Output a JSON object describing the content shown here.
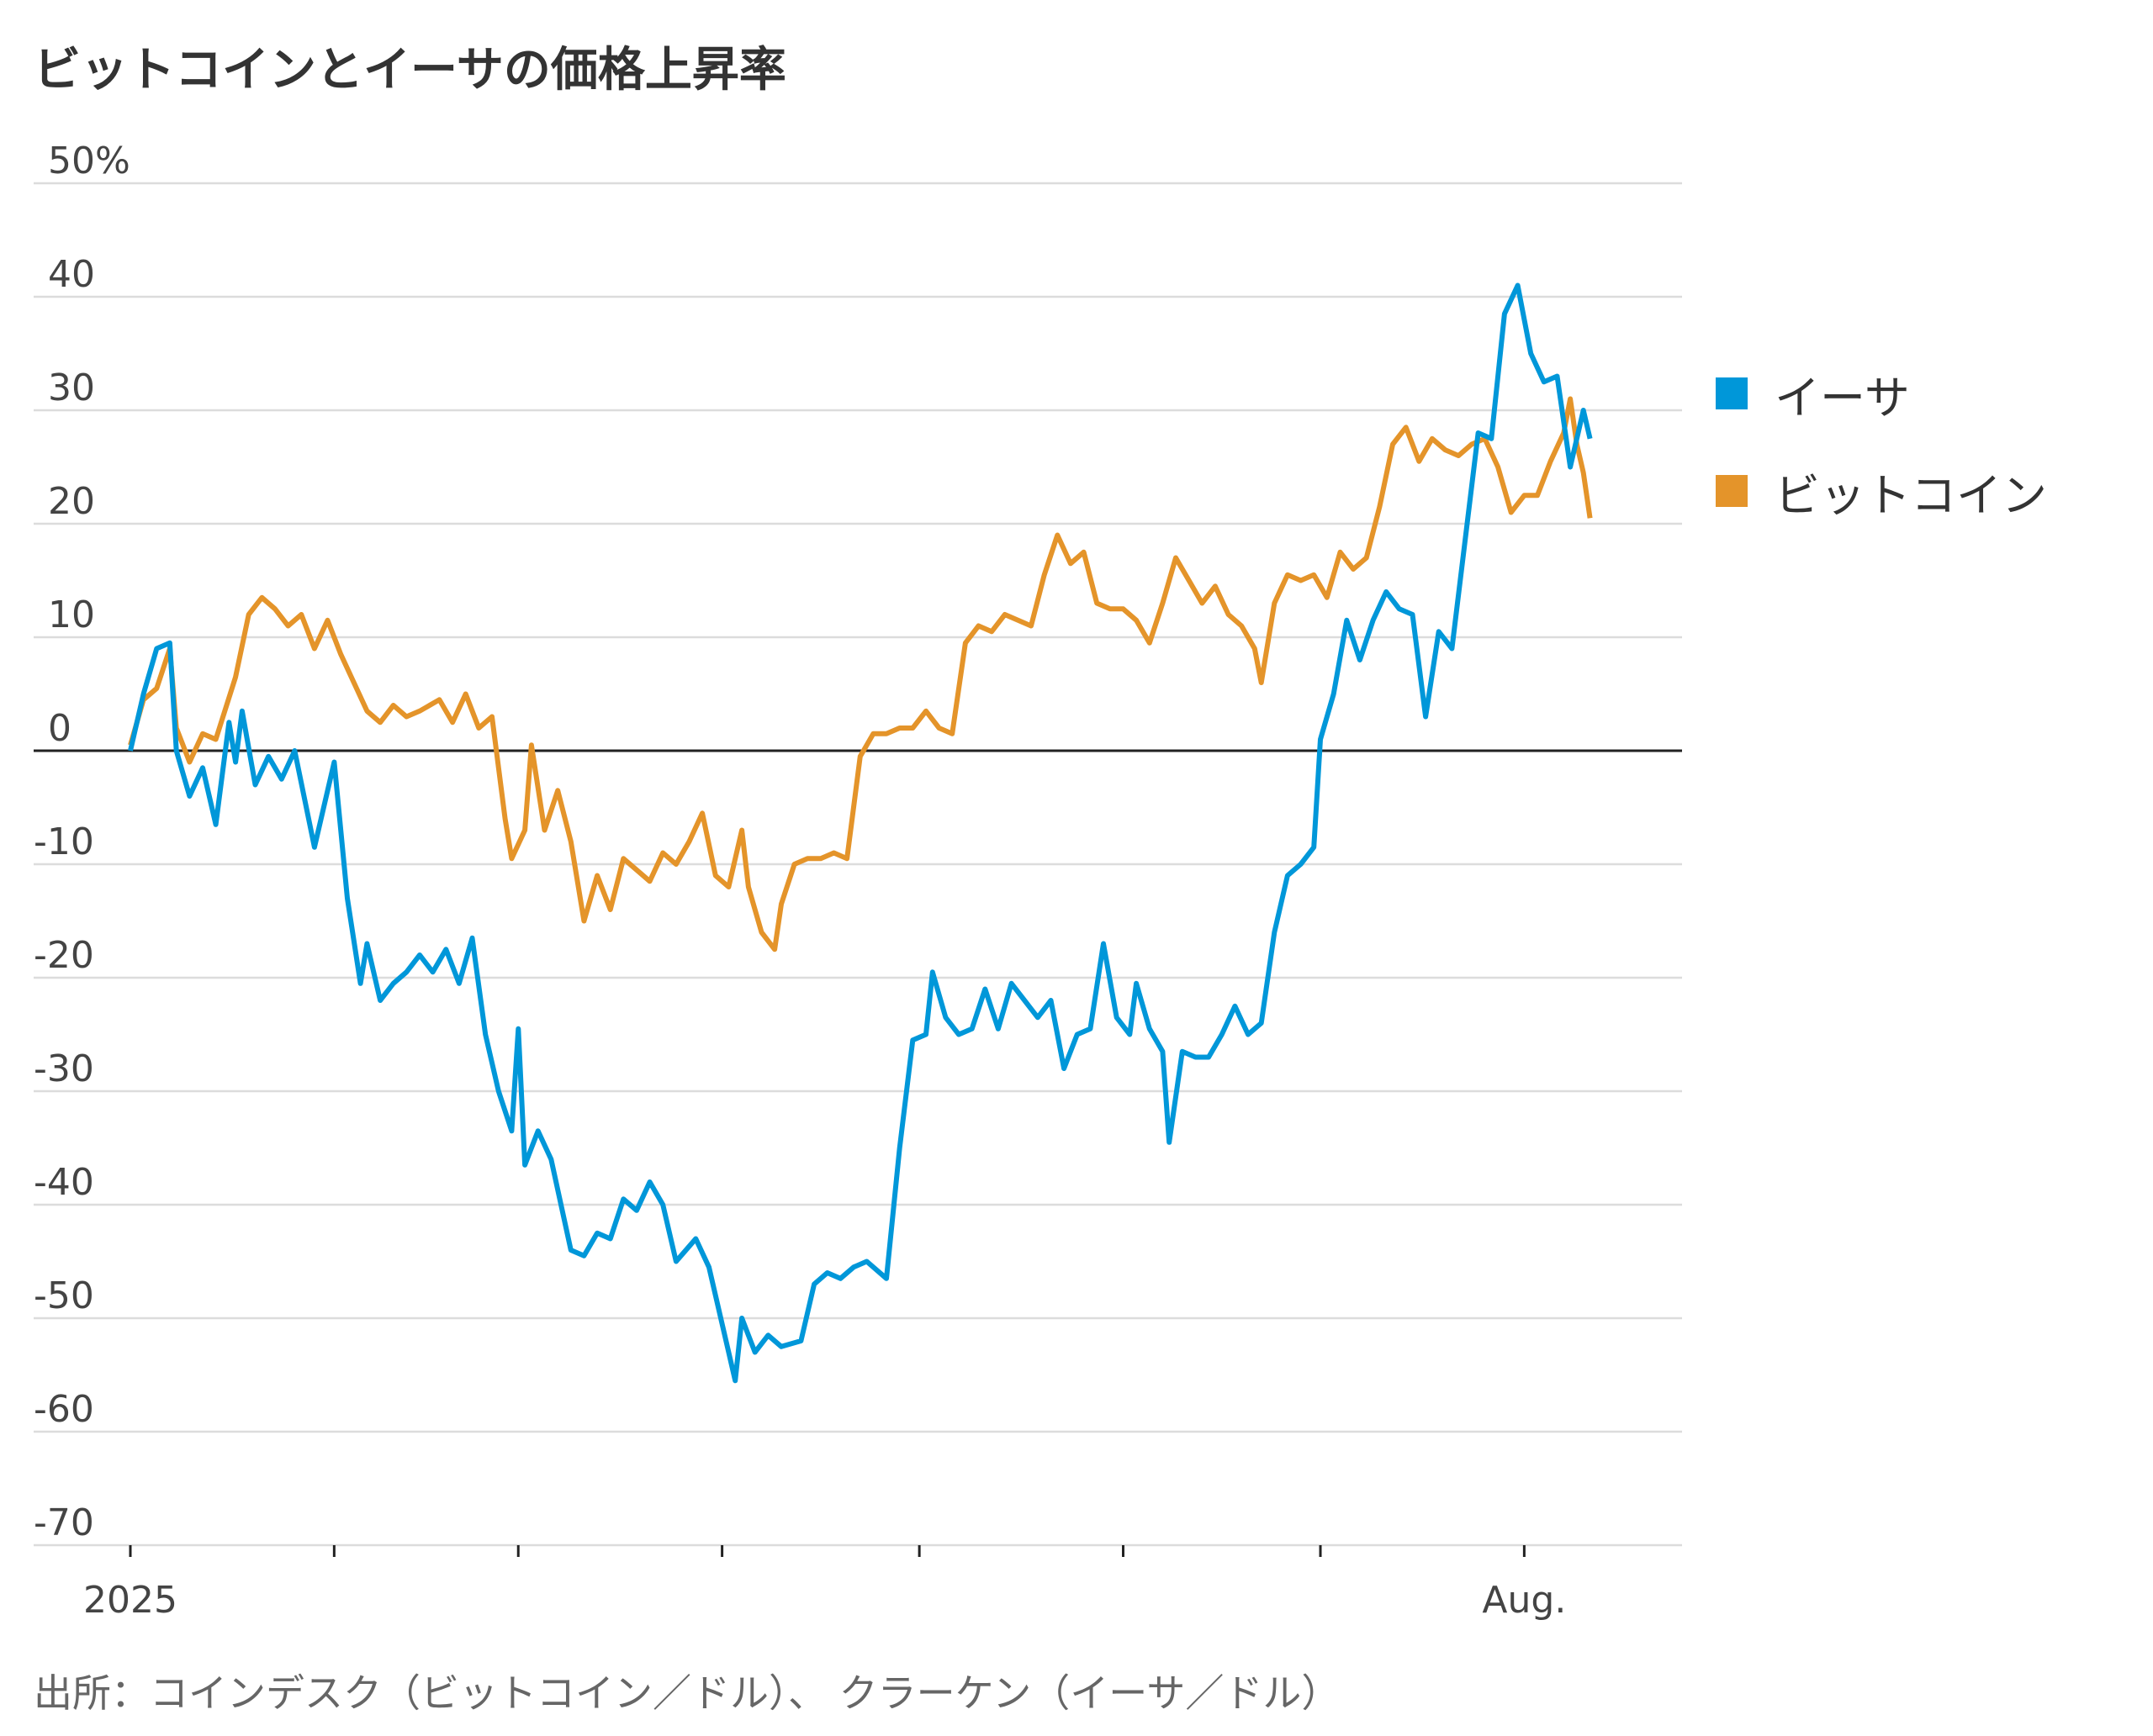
{
  "title": "ビットコインとイーサの価格上昇率",
  "source": "出所：コインデスク（ビットコイン／ドル）、 クラーケン（イーサ／ドル）",
  "legend": [
    {
      "name": "イーサ",
      "color": "#0097d9"
    },
    {
      "name": "ビットコイン",
      "color": "#e4942a"
    }
  ],
  "chart_data": {
    "type": "line",
    "title": "ビットコインとイーサの価格上昇率",
    "y_unit": "%",
    "ylim": [
      -70,
      50
    ],
    "yticks": [
      50,
      40,
      30,
      20,
      10,
      0,
      -10,
      -20,
      -30,
      -40,
      -50,
      -60,
      -70
    ],
    "ytick_labels": [
      "50%",
      "40",
      "30",
      "20",
      "10",
      "0",
      "-10",
      "-20",
      "-30",
      "-40",
      "-50",
      "-60",
      "-70"
    ],
    "xlim": [
      "2025-01-01",
      "2025-08-25"
    ],
    "xtick_labels": [
      {
        "date": "2025-01-01",
        "label": "2025"
      },
      {
        "date": "2025-08-01",
        "label": "Aug."
      }
    ],
    "xticks_unlabeled": [
      "2025-02-01",
      "2025-03-01",
      "2025-04-01",
      "2025-05-01",
      "2025-06-01",
      "2025-07-01"
    ],
    "zero_line": true,
    "grid": "horizontal",
    "legend_position": "right",
    "series": [
      {
        "name": "イーサ",
        "color": "#0097d9",
        "points": [
          [
            "2025-01-01",
            0
          ],
          [
            "2025-01-03",
            5
          ],
          [
            "2025-01-05",
            9
          ],
          [
            "2025-01-07",
            9.5
          ],
          [
            "2025-01-08",
            0
          ],
          [
            "2025-01-10",
            -4
          ],
          [
            "2025-01-12",
            -1.5
          ],
          [
            "2025-01-14",
            -6.5
          ],
          [
            "2025-01-16",
            2.5
          ],
          [
            "2025-01-17",
            -1
          ],
          [
            "2025-01-18",
            3.5
          ],
          [
            "2025-01-20",
            -3
          ],
          [
            "2025-01-22",
            -0.5
          ],
          [
            "2025-01-24",
            -2.5
          ],
          [
            "2025-01-26",
            0
          ],
          [
            "2025-01-29",
            -8.5
          ],
          [
            "2025-02-01",
            -1
          ],
          [
            "2025-02-03",
            -13
          ],
          [
            "2025-02-05",
            -20.5
          ],
          [
            "2025-02-06",
            -17
          ],
          [
            "2025-02-08",
            -22
          ],
          [
            "2025-02-10",
            -20.5
          ],
          [
            "2025-02-12",
            -19.5
          ],
          [
            "2025-02-14",
            -18
          ],
          [
            "2025-02-16",
            -19.5
          ],
          [
            "2025-02-18",
            -17.5
          ],
          [
            "2025-02-20",
            -20.5
          ],
          [
            "2025-02-22",
            -16.5
          ],
          [
            "2025-02-24",
            -25
          ],
          [
            "2025-02-26",
            -30
          ],
          [
            "2025-02-28",
            -33.5
          ],
          [
            "2025-03-01",
            -24.5
          ],
          [
            "2025-03-02",
            -36.5
          ],
          [
            "2025-03-04",
            -33.5
          ],
          [
            "2025-03-06",
            -36
          ],
          [
            "2025-03-09",
            -44
          ],
          [
            "2025-03-11",
            -44.5
          ],
          [
            "2025-03-13",
            -42.5
          ],
          [
            "2025-03-15",
            -43
          ],
          [
            "2025-03-17",
            -39.5
          ],
          [
            "2025-03-19",
            -40.5
          ],
          [
            "2025-03-21",
            -38
          ],
          [
            "2025-03-23",
            -40
          ],
          [
            "2025-03-25",
            -45
          ],
          [
            "2025-03-28",
            -43
          ],
          [
            "2025-03-30",
            -45.5
          ],
          [
            "2025-04-02",
            -53
          ],
          [
            "2025-04-03",
            -55.5
          ],
          [
            "2025-04-04",
            -50
          ],
          [
            "2025-04-06",
            -53
          ],
          [
            "2025-04-08",
            -51.5
          ],
          [
            "2025-04-10",
            -52.5
          ],
          [
            "2025-04-13",
            -52
          ],
          [
            "2025-04-15",
            -47
          ],
          [
            "2025-04-17",
            -46
          ],
          [
            "2025-04-19",
            -46.5
          ],
          [
            "2025-04-21",
            -45.5
          ],
          [
            "2025-04-23",
            -45
          ],
          [
            "2025-04-26",
            -46.5
          ],
          [
            "2025-04-28",
            -35
          ],
          [
            "2025-04-30",
            -25.5
          ],
          [
            "2025-05-02",
            -25
          ],
          [
            "2025-05-03",
            -19.5
          ],
          [
            "2025-05-05",
            -23.5
          ],
          [
            "2025-05-07",
            -25
          ],
          [
            "2025-05-09",
            -24.5
          ],
          [
            "2025-05-11",
            -21
          ],
          [
            "2025-05-13",
            -24.5
          ],
          [
            "2025-05-15",
            -20.5
          ],
          [
            "2025-05-17",
            -22
          ],
          [
            "2025-05-19",
            -23.5
          ],
          [
            "2025-05-21",
            -22
          ],
          [
            "2025-05-23",
            -28
          ],
          [
            "2025-05-25",
            -25
          ],
          [
            "2025-05-27",
            -24.5
          ],
          [
            "2025-05-29",
            -17
          ],
          [
            "2025-05-31",
            -23.5
          ],
          [
            "2025-06-02",
            -25
          ],
          [
            "2025-06-03",
            -20.5
          ],
          [
            "2025-06-05",
            -24.5
          ],
          [
            "2025-06-07",
            -26.5
          ],
          [
            "2025-06-08",
            -34.5
          ],
          [
            "2025-06-10",
            -26.5
          ],
          [
            "2025-06-12",
            -27
          ],
          [
            "2025-06-14",
            -27
          ],
          [
            "2025-06-16",
            -25
          ],
          [
            "2025-06-18",
            -22.5
          ],
          [
            "2025-06-20",
            -25
          ],
          [
            "2025-06-22",
            -24
          ],
          [
            "2025-06-24",
            -16
          ],
          [
            "2025-06-26",
            -11
          ],
          [
            "2025-06-28",
            -10
          ],
          [
            "2025-06-30",
            -8.5
          ],
          [
            "2025-07-01",
            1
          ],
          [
            "2025-07-03",
            5
          ],
          [
            "2025-07-05",
            11.5
          ],
          [
            "2025-07-07",
            8
          ],
          [
            "2025-07-09",
            11.5
          ],
          [
            "2025-07-11",
            14
          ],
          [
            "2025-07-13",
            12.5
          ],
          [
            "2025-07-15",
            12
          ],
          [
            "2025-07-17",
            3
          ],
          [
            "2025-07-19",
            10.5
          ],
          [
            "2025-07-21",
            9
          ],
          [
            "2025-07-23",
            18.5
          ],
          [
            "2025-07-25",
            28
          ],
          [
            "2025-07-27",
            27.5
          ],
          [
            "2025-07-29",
            38.5
          ],
          [
            "2025-07-31",
            41
          ],
          [
            "2025-08-02",
            35
          ],
          [
            "2025-08-04",
            32.5
          ],
          [
            "2025-08-06",
            33
          ],
          [
            "2025-08-08",
            25
          ],
          [
            "2025-08-10",
            30
          ],
          [
            "2025-08-11",
            27.5
          ]
        ]
      },
      {
        "name": "ビットコイン",
        "color": "#e4942a",
        "points": [
          [
            "2025-01-01",
            0.5
          ],
          [
            "2025-01-03",
            4.5
          ],
          [
            "2025-01-05",
            5.5
          ],
          [
            "2025-01-07",
            9
          ],
          [
            "2025-01-08",
            2
          ],
          [
            "2025-01-10",
            -1
          ],
          [
            "2025-01-12",
            1.5
          ],
          [
            "2025-01-14",
            1
          ],
          [
            "2025-01-17",
            6.5
          ],
          [
            "2025-01-19",
            12
          ],
          [
            "2025-01-21",
            13.5
          ],
          [
            "2025-01-23",
            12.5
          ],
          [
            "2025-01-25",
            11
          ],
          [
            "2025-01-27",
            12
          ],
          [
            "2025-01-29",
            9
          ],
          [
            "2025-01-31",
            11.5
          ],
          [
            "2025-02-02",
            8.5
          ],
          [
            "2025-02-04",
            6
          ],
          [
            "2025-02-06",
            3.5
          ],
          [
            "2025-02-08",
            2.5
          ],
          [
            "2025-02-10",
            4
          ],
          [
            "2025-02-12",
            3
          ],
          [
            "2025-02-14",
            3.5
          ],
          [
            "2025-02-17",
            4.5
          ],
          [
            "2025-02-19",
            2.5
          ],
          [
            "2025-02-21",
            5
          ],
          [
            "2025-02-23",
            2
          ],
          [
            "2025-02-25",
            3
          ],
          [
            "2025-02-27",
            -6
          ],
          [
            "2025-02-28",
            -9.5
          ],
          [
            "2025-03-02",
            -7
          ],
          [
            "2025-03-03",
            0.5
          ],
          [
            "2025-03-05",
            -7
          ],
          [
            "2025-03-07",
            -3.5
          ],
          [
            "2025-03-09",
            -8
          ],
          [
            "2025-03-11",
            -15
          ],
          [
            "2025-03-13",
            -11
          ],
          [
            "2025-03-15",
            -14
          ],
          [
            "2025-03-17",
            -9.5
          ],
          [
            "2025-03-19",
            -10.5
          ],
          [
            "2025-03-21",
            -11.5
          ],
          [
            "2025-03-23",
            -9
          ],
          [
            "2025-03-25",
            -10
          ],
          [
            "2025-03-27",
            -8
          ],
          [
            "2025-03-29",
            -5.5
          ],
          [
            "2025-03-31",
            -11
          ],
          [
            "2025-04-02",
            -12
          ],
          [
            "2025-04-04",
            -7
          ],
          [
            "2025-04-05",
            -12
          ],
          [
            "2025-04-07",
            -16
          ],
          [
            "2025-04-09",
            -17.5
          ],
          [
            "2025-04-10",
            -13.5
          ],
          [
            "2025-04-12",
            -10
          ],
          [
            "2025-04-14",
            -9.5
          ],
          [
            "2025-04-16",
            -9.5
          ],
          [
            "2025-04-18",
            -9
          ],
          [
            "2025-04-20",
            -9.5
          ],
          [
            "2025-04-22",
            -0.5
          ],
          [
            "2025-04-24",
            1.5
          ],
          [
            "2025-04-26",
            1.5
          ],
          [
            "2025-04-28",
            2
          ],
          [
            "2025-04-30",
            2
          ],
          [
            "2025-05-02",
            3.5
          ],
          [
            "2025-05-04",
            2
          ],
          [
            "2025-05-06",
            1.5
          ],
          [
            "2025-05-08",
            9.5
          ],
          [
            "2025-05-10",
            11
          ],
          [
            "2025-05-12",
            10.5
          ],
          [
            "2025-05-14",
            12
          ],
          [
            "2025-05-16",
            11.5
          ],
          [
            "2025-05-18",
            11
          ],
          [
            "2025-05-20",
            15.5
          ],
          [
            "2025-05-22",
            19
          ],
          [
            "2025-05-24",
            16.5
          ],
          [
            "2025-05-26",
            17.5
          ],
          [
            "2025-05-28",
            13
          ],
          [
            "2025-05-30",
            12.5
          ],
          [
            "2025-06-01",
            12.5
          ],
          [
            "2025-06-03",
            11.5
          ],
          [
            "2025-06-05",
            9.5
          ],
          [
            "2025-06-07",
            13
          ],
          [
            "2025-06-09",
            17
          ],
          [
            "2025-06-11",
            15
          ],
          [
            "2025-06-13",
            13
          ],
          [
            "2025-06-15",
            14.5
          ],
          [
            "2025-06-17",
            12
          ],
          [
            "2025-06-19",
            11
          ],
          [
            "2025-06-21",
            9
          ],
          [
            "2025-06-22",
            6
          ],
          [
            "2025-06-24",
            13
          ],
          [
            "2025-06-26",
            15.5
          ],
          [
            "2025-06-28",
            15
          ],
          [
            "2025-06-30",
            15.5
          ],
          [
            "2025-07-02",
            13.5
          ],
          [
            "2025-07-04",
            17.5
          ],
          [
            "2025-07-06",
            16
          ],
          [
            "2025-07-08",
            17
          ],
          [
            "2025-07-10",
            21.5
          ],
          [
            "2025-07-12",
            27
          ],
          [
            "2025-07-14",
            28.5
          ],
          [
            "2025-07-16",
            25.5
          ],
          [
            "2025-07-18",
            27.5
          ],
          [
            "2025-07-20",
            26.5
          ],
          [
            "2025-07-22",
            26
          ],
          [
            "2025-07-24",
            27
          ],
          [
            "2025-07-26",
            27.5
          ],
          [
            "2025-07-28",
            25
          ],
          [
            "2025-07-30",
            21
          ],
          [
            "2025-08-01",
            22.5
          ],
          [
            "2025-08-03",
            22.5
          ],
          [
            "2025-08-05",
            25.5
          ],
          [
            "2025-08-07",
            28
          ],
          [
            "2025-08-08",
            31
          ],
          [
            "2025-08-09",
            27
          ],
          [
            "2025-08-10",
            24.5
          ],
          [
            "2025-08-11",
            20.5
          ]
        ]
      }
    ]
  }
}
